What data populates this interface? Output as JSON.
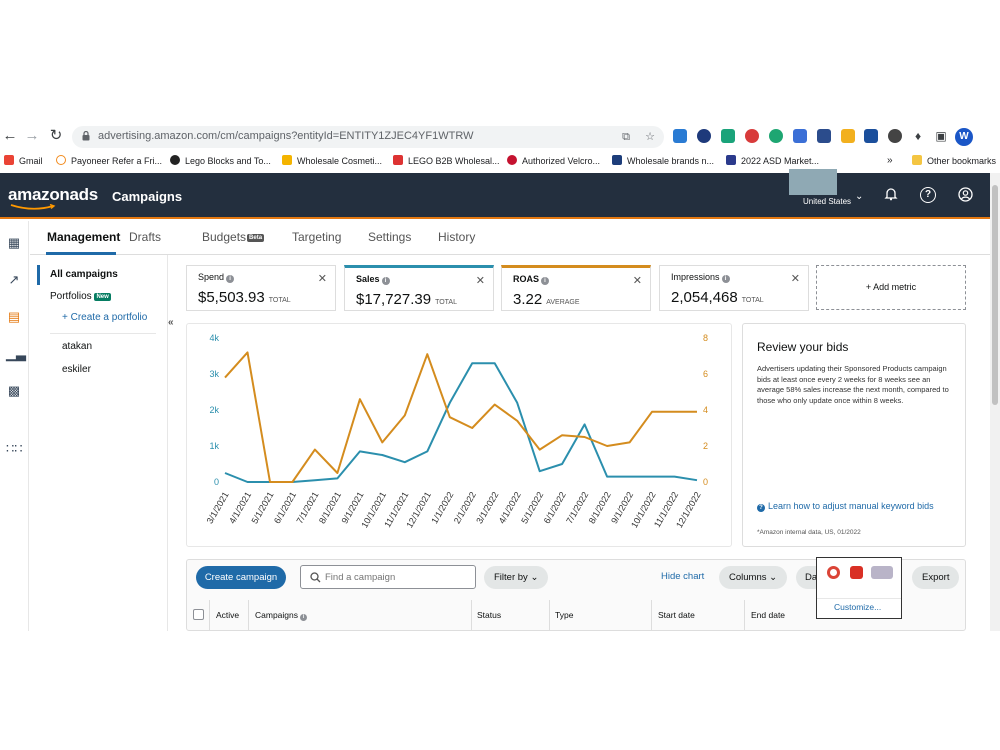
{
  "browser": {
    "url": "advertising.amazon.com/cm/campaigns?entityId=ENTITY1ZJEC4YF1WTRW",
    "profile_initial": "W",
    "bookmarks": [
      "Gmail",
      "Payoneer Refer a Fri...",
      "Lego Blocks and To...",
      "Wholesale Cosmeti...",
      "LEGO B2B Wholesal...",
      "Authorized Velcro...",
      "Wholesale brands n...",
      "2022 ASD Market..."
    ],
    "bookmarks_overflow": "»",
    "other_bookmarks": "Other bookmarks"
  },
  "header": {
    "logo": "amazonads",
    "title": "Campaigns",
    "country": "United States"
  },
  "tabs": [
    {
      "label": "Management"
    },
    {
      "label": "Drafts"
    },
    {
      "label": "Budgets",
      "badge": "Beta"
    },
    {
      "label": "Targeting"
    },
    {
      "label": "Settings"
    },
    {
      "label": "History"
    }
  ],
  "left_panel": {
    "all_campaigns": "All campaigns",
    "portfolios": "Portfolios",
    "new_badge": "New",
    "create_portfolio": "+ Create a portfolio",
    "portfolio_items": [
      "atakan",
      "eskiler"
    ],
    "collapse": "«"
  },
  "metrics": [
    {
      "label": "Spend",
      "value": "$5,503.93",
      "suffix": "TOTAL"
    },
    {
      "label": "Sales",
      "value": "$17,727.39",
      "suffix": "TOTAL"
    },
    {
      "label": "ROAS",
      "value": "3.22",
      "suffix": "AVERAGE"
    },
    {
      "label": "Impressions",
      "value": "2,054,468",
      "suffix": "TOTAL"
    }
  ],
  "add_metric": "+ Add metric",
  "colors": {
    "sales_series": "#2b8fad",
    "roas_series": "#d48c1e",
    "primary": "#1f6aa8",
    "header_bg": "#232f3e",
    "accent": "#e47911"
  },
  "chart_data": {
    "type": "line",
    "x": [
      "3/1/2021",
      "4/1/2021",
      "5/1/2021",
      "6/1/2021",
      "7/1/2021",
      "8/1/2021",
      "9/1/2021",
      "10/1/2021",
      "11/1/2021",
      "12/1/2021",
      "1/1/2022",
      "2/1/2022",
      "3/1/2022",
      "4/1/2022",
      "5/1/2022",
      "6/1/2022",
      "7/1/2022",
      "8/1/2022",
      "9/1/2022",
      "10/1/2022",
      "11/1/2022",
      "12/1/2022"
    ],
    "x_tick_labels": [
      "3/1/2021",
      "4/1/2021",
      "5/1/2021",
      "6/1/2021",
      "7/1/2021",
      "8/1/2021",
      "9/1/2021",
      "10/1/2021",
      "11/1/2021",
      "12/1/2021",
      "1/1/2022",
      "2/1/2022",
      "3/1/2022",
      "4/1/2022",
      "5/1/2022",
      "6/1/2022",
      "7/1/2022",
      "8/1/2022",
      "9/1/2022",
      "10/1/2022",
      "11/1/2022",
      "12/1/2022"
    ],
    "y_left_ticks": [
      "0",
      "1k",
      "2k",
      "3k",
      "4k"
    ],
    "y_right_ticks": [
      "0",
      "2",
      "4",
      "6",
      "8"
    ],
    "y_left_range": [
      0,
      4000
    ],
    "y_right_range": [
      0,
      8
    ],
    "grid": false,
    "series": [
      {
        "axis": "left",
        "values": [
          250,
          0,
          0,
          0,
          50,
          100,
          850,
          750,
          550,
          850,
          2200,
          3300,
          3300,
          2200,
          300,
          500,
          1600,
          150,
          150,
          150,
          150,
          50
        ]
      },
      {
        "axis": "right",
        "values": [
          5.8,
          7.2,
          0,
          0,
          1.8,
          0.5,
          4.6,
          2.2,
          3.7,
          7.1,
          3.6,
          3.0,
          4.3,
          3.4,
          1.8,
          2.6,
          2.5,
          2.0,
          2.2,
          3.9,
          3.9,
          3.9
        ]
      }
    ]
  },
  "review": {
    "title": "Review your bids",
    "body": "Advertisers updating their Sponsored Products campaign bids at least once every 2 weeks for 8 weeks see an average 58% sales increase the next month, compared to those who only update once within 8 weeks.",
    "link": "Learn how to adjust manual keyword bids",
    "footnote": "*Amazon internal data, US, 01/2022"
  },
  "table": {
    "create_button": "Create campaign",
    "search_placeholder": "Find a campaign",
    "filter": "Filter by",
    "hide_chart": "Hide chart",
    "columns": "Columns",
    "date_partial": "Da",
    "export": "Export",
    "customize": "Customize...",
    "headers": [
      "Active",
      "Campaigns",
      "Status",
      "Type",
      "Start date",
      "End date"
    ]
  }
}
